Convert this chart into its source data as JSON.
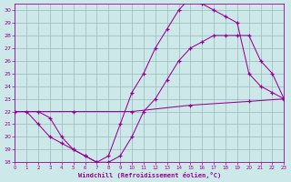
{
  "xlabel": "Windchill (Refroidissement éolien,°C)",
  "bg_color": "#cce8e8",
  "line_color": "#990099",
  "grid_color": "#99bbbb",
  "xlim": [
    0,
    23
  ],
  "ylim": [
    18,
    30.5
  ],
  "yticks": [
    18,
    19,
    20,
    21,
    22,
    23,
    24,
    25,
    26,
    27,
    28,
    29,
    30
  ],
  "xticks": [
    0,
    1,
    2,
    3,
    4,
    5,
    6,
    7,
    8,
    9,
    10,
    11,
    12,
    13,
    14,
    15,
    16,
    17,
    18,
    19,
    20,
    21,
    22,
    23
  ],
  "line1_x": [
    0,
    1,
    2,
    3,
    4,
    5,
    6,
    7,
    8,
    9,
    10,
    11,
    12,
    13,
    14,
    15,
    16,
    17,
    18,
    19,
    20,
    21,
    22,
    23
  ],
  "line1_y": [
    22,
    22,
    21,
    20,
    19.5,
    19,
    18.5,
    18,
    18.5,
    21,
    23.5,
    25,
    27,
    28.5,
    30,
    31,
    30.5,
    30,
    29.5,
    29,
    25,
    24,
    23.5,
    23
  ],
  "line2_x": [
    0,
    2,
    3,
    4,
    5,
    6,
    7,
    8,
    9,
    10,
    11,
    12,
    13,
    14,
    15,
    16,
    17,
    18,
    19,
    20,
    21,
    22,
    23
  ],
  "line2_y": [
    22,
    22,
    21.5,
    20,
    19,
    18.5,
    18,
    18,
    18.5,
    20,
    22,
    23,
    24.5,
    26,
    27,
    27.5,
    28,
    28,
    28,
    28,
    26,
    25,
    23
  ],
  "line3_x": [
    0,
    5,
    10,
    15,
    20,
    23
  ],
  "line3_y": [
    22,
    22,
    22,
    22.5,
    22.8,
    23
  ]
}
